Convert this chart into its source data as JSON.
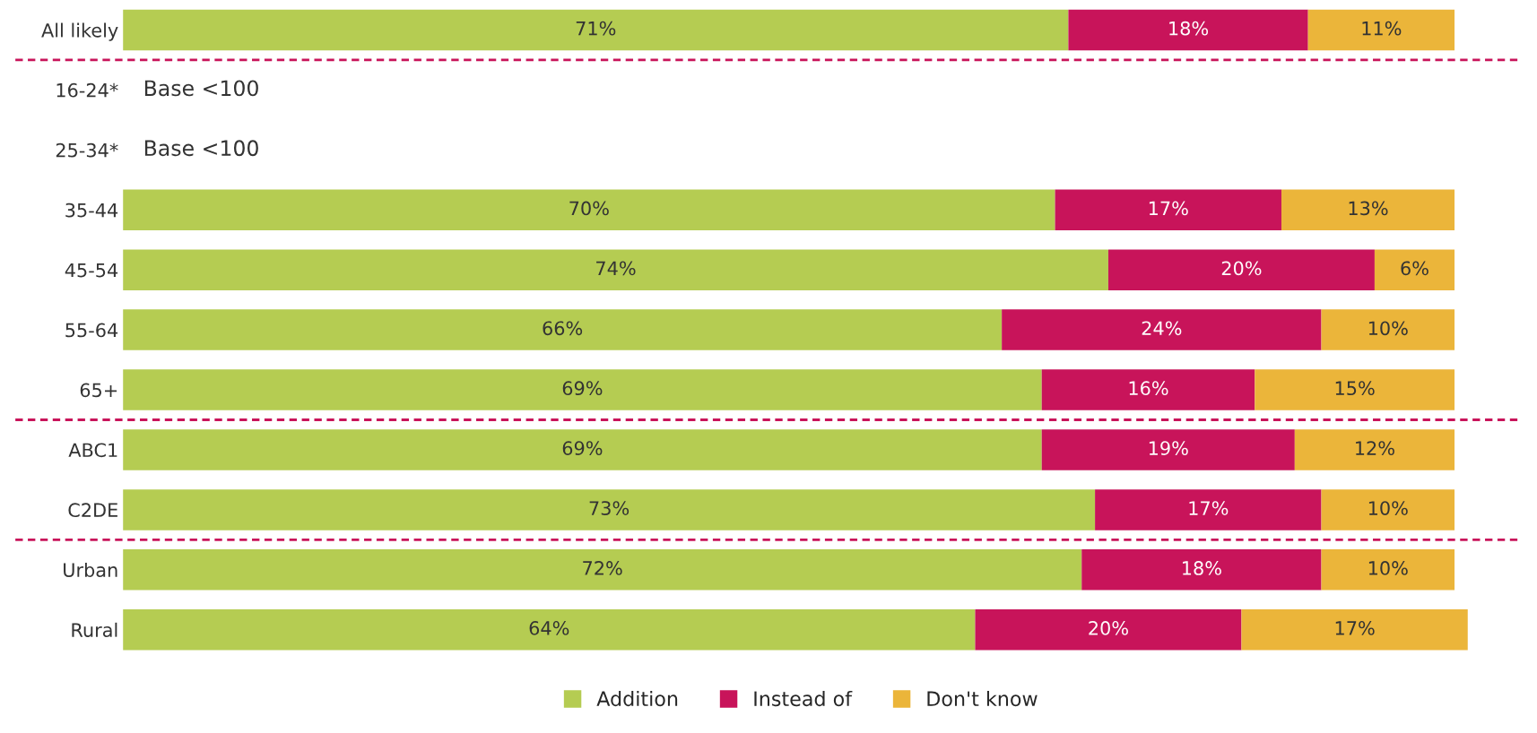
{
  "chart_data": {
    "type": "bar",
    "orientation": "horizontal",
    "stacked": true,
    "tick_labels": "y",
    "grid": false,
    "legend": "bottom",
    "marker": "square",
    "categories": [
      "All likely",
      "16-24*",
      "25-34*",
      "35-44",
      "45-54",
      "55-64",
      "65+",
      "ABC1",
      "C2DE",
      "Urban",
      "Rural"
    ],
    "series": [
      {
        "name": "Addition",
        "color": "#b5cc52",
        "values": [
          71,
          null,
          null,
          70,
          74,
          66,
          69,
          69,
          73,
          72,
          64
        ],
        "value_labels": [
          "71%",
          null,
          null,
          "70%",
          "74%",
          "66%",
          "69%",
          "69%",
          "73%",
          "72%",
          "64%"
        ]
      },
      {
        "name": "Instead of",
        "color": "#c8145a",
        "values": [
          18,
          null,
          null,
          17,
          20,
          24,
          16,
          19,
          17,
          18,
          20
        ],
        "value_labels": [
          "18%",
          null,
          null,
          "17%",
          "20%",
          "24%",
          "16%",
          "19%",
          "17%",
          "18%",
          "20%"
        ]
      },
      {
        "name": "Don't know",
        "color": "#ebb53a",
        "values": [
          11,
          null,
          null,
          13,
          6,
          10,
          15,
          12,
          10,
          10,
          17
        ],
        "value_labels": [
          "11%",
          null,
          null,
          "13%",
          "6%",
          "10%",
          "15%",
          "12%",
          "10%",
          "10%",
          "17%"
        ]
      }
    ],
    "annotations": [
      "Base <100",
      "Base <100"
    ]
  }
}
